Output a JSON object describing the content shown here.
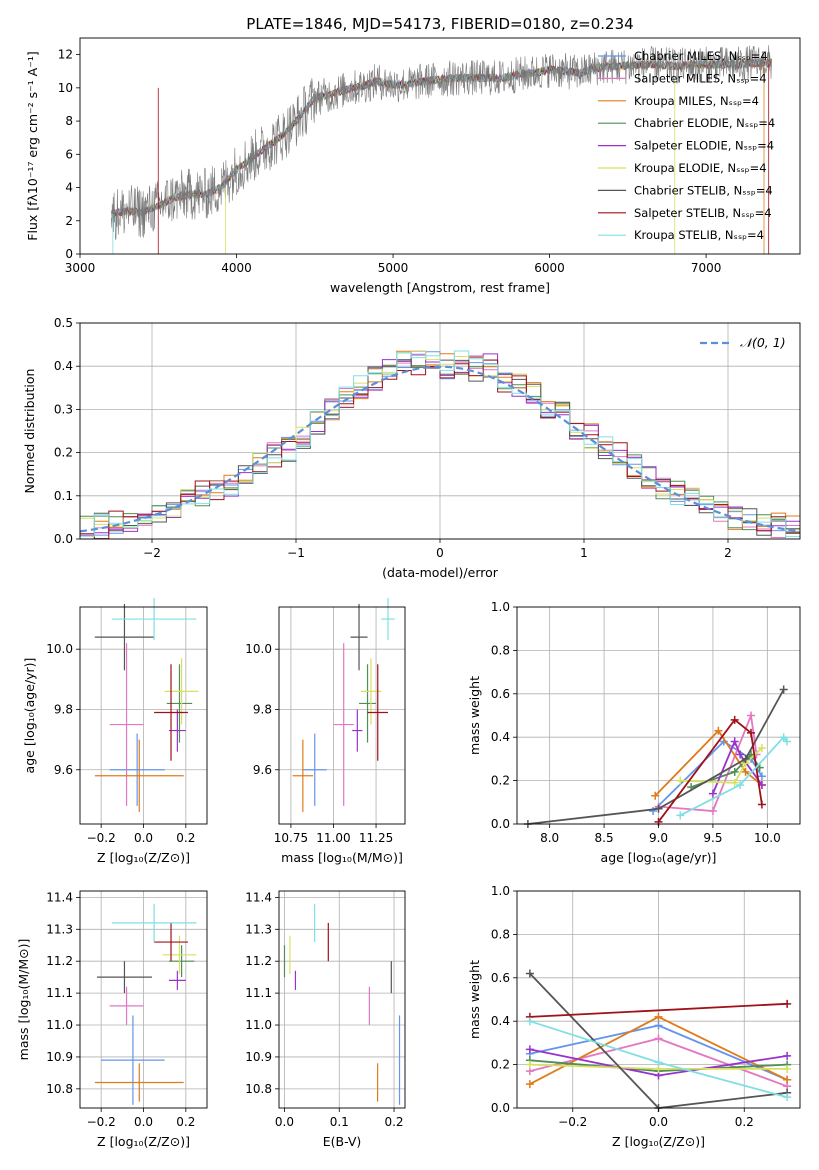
{
  "figure": {
    "title": "PLATE=1846, MJD=54173, FIBERID=0180, z=0.234",
    "colors": [
      "#6495ed",
      "#e377c2",
      "#e07b19",
      "#4e8f56",
      "#9932cc",
      "#d8e060",
      "#555555",
      "#a0111a",
      "#80dfe3"
    ]
  },
  "chart_data": [
    {
      "id": "spectrum",
      "type": "line",
      "xlabel": "wavelength [Angstrom, rest frame]",
      "ylabel": "Flux [fλ10⁻¹⁷ erg cm⁻² s⁻¹ A⁻¹]",
      "xlim": [
        3000,
        7600
      ],
      "ylim": [
        0,
        13
      ],
      "xticks": [
        "3000",
        "4000",
        "5000",
        "6000",
        "7000"
      ],
      "yticks": [
        "0",
        "2",
        "4",
        "6",
        "8",
        "10",
        "12"
      ],
      "legend_position": "top-right",
      "legend": [
        "Chabrier MILES, Nₛₛₚ=4",
        "Salpeter MILES, Nₛₛₚ=4",
        "Kroupa MILES, Nₛₛₚ=4",
        "Chabrier ELODIE, Nₛₛₚ=4",
        "Salpeter ELODIE, Nₛₛₚ=4",
        "Kroupa ELODIE, Nₛₛₚ=4",
        "Chabrier STELIB, Nₛₛₚ=4",
        "Salpeter STELIB, Nₛₛₚ=4",
        "Kroupa STELIB, Nₛₛₚ=4"
      ],
      "envelope_x": [
        3200,
        3300,
        3400,
        3500,
        3600,
        3700,
        3800,
        3900,
        4000,
        4100,
        4200,
        4300,
        4400,
        4500,
        4600,
        4700,
        4800,
        4900,
        5000,
        5100,
        5200,
        5300,
        5400,
        5500,
        5600,
        5700,
        5800,
        5900,
        6000,
        6100,
        6200,
        6300,
        6400,
        6500,
        6600,
        6700,
        6800,
        6900,
        7000,
        7100,
        7200,
        7300,
        7400
      ],
      "envelope_y": [
        2.4,
        2.6,
        2.5,
        2.9,
        3.4,
        3.6,
        3.6,
        4.0,
        5.1,
        5.8,
        6.5,
        7.2,
        8.2,
        9.4,
        9.6,
        9.9,
        10.1,
        10.4,
        10.2,
        10.2,
        10.4,
        10.5,
        10.6,
        10.6,
        10.6,
        10.6,
        10.8,
        10.9,
        11.1,
        11.0,
        10.9,
        11.2,
        11.3,
        11.3,
        11.4,
        11.4,
        11.3,
        11.4,
        11.4,
        11.4,
        11.4,
        11.5,
        11.5
      ]
    },
    {
      "id": "residual-histogram",
      "type": "line",
      "xlabel": "(data-model)/error",
      "ylabel": "Normed distribution",
      "xlim": [
        -2.5,
        2.5
      ],
      "ylim": [
        0,
        0.5
      ],
      "xticks": [
        "−2",
        "−1",
        "0",
        "1",
        "2"
      ],
      "yticks": [
        "0.0",
        "0.1",
        "0.2",
        "0.3",
        "0.4",
        "0.5"
      ],
      "legend": [
        "𝒩(0, 1)"
      ],
      "legend_position": "top-right",
      "bin_centers": [
        -2.45,
        -2.35,
        -2.25,
        -2.15,
        -2.05,
        -1.95,
        -1.85,
        -1.75,
        -1.65,
        -1.55,
        -1.45,
        -1.35,
        -1.25,
        -1.15,
        -1.05,
        -0.95,
        -0.85,
        -0.75,
        -0.65,
        -0.55,
        -0.45,
        -0.35,
        -0.25,
        -0.15,
        -0.05,
        0.05,
        0.15,
        0.25,
        0.35,
        0.45,
        0.55,
        0.65,
        0.75,
        0.85,
        0.95,
        1.05,
        1.15,
        1.25,
        1.35,
        1.45,
        1.55,
        1.65,
        1.75,
        1.85,
        1.95,
        2.05,
        2.15,
        2.25,
        2.35,
        2.45
      ],
      "mean_histogram": [
        0.025,
        0.03,
        0.035,
        0.04,
        0.05,
        0.06,
        0.075,
        0.09,
        0.105,
        0.11,
        0.125,
        0.145,
        0.17,
        0.195,
        0.21,
        0.235,
        0.27,
        0.3,
        0.33,
        0.35,
        0.37,
        0.39,
        0.41,
        0.405,
        0.415,
        0.4,
        0.41,
        0.395,
        0.4,
        0.37,
        0.355,
        0.34,
        0.31,
        0.29,
        0.26,
        0.24,
        0.21,
        0.195,
        0.17,
        0.14,
        0.12,
        0.105,
        0.09,
        0.075,
        0.065,
        0.05,
        0.045,
        0.035,
        0.03,
        0.025
      ]
    },
    {
      "id": "age-vs-Z",
      "type": "scatter",
      "xlabel": "Z [log₁₀(Z/Z⊙)]",
      "ylabel": "age  [log₁₀(age/yr)]",
      "xlim": [
        -0.3,
        0.3
      ],
      "ylim": [
        9.42,
        10.14
      ],
      "xticks": [
        "−0.2",
        "0.0",
        "0.2"
      ],
      "xtick_values": [
        -0.2,
        0.0,
        0.2
      ],
      "yticks": [
        "9.6",
        "9.8",
        "10.0"
      ],
      "ytick_values": [
        9.6,
        9.8,
        10.0
      ],
      "points": [
        {
          "x": -0.03,
          "y": 9.6,
          "xerr": 0.13,
          "yerr": 0.12
        },
        {
          "x": -0.08,
          "y": 9.75,
          "xerr": 0.08,
          "yerr": 0.27
        },
        {
          "x": -0.02,
          "y": 9.58,
          "xerr": 0.21,
          "yerr": 0.12
        },
        {
          "x": 0.17,
          "y": 9.82,
          "xerr": 0.06,
          "yerr": 0.13
        },
        {
          "x": 0.16,
          "y": 9.73,
          "xerr": 0.04,
          "yerr": 0.07
        },
        {
          "x": 0.18,
          "y": 9.86,
          "xerr": 0.08,
          "yerr": 0.11
        },
        {
          "x": -0.09,
          "y": 10.04,
          "xerr": 0.14,
          "yerr": 0.11
        },
        {
          "x": 0.13,
          "y": 9.79,
          "xerr": 0.08,
          "yerr": 0.16
        },
        {
          "x": 0.05,
          "y": 10.1,
          "xerr": 0.2,
          "yerr": 0.07
        }
      ]
    },
    {
      "id": "age-vs-mass",
      "type": "scatter",
      "xlabel": "mass [log₁₀(M/M⊙)]",
      "ylabel": "",
      "xlim": [
        10.68,
        11.42
      ],
      "ylim": [
        9.42,
        10.14
      ],
      "xticks": [
        "10.75",
        "11.00",
        "11.25"
      ],
      "xtick_values": [
        10.75,
        11.0,
        11.25
      ],
      "yticks": [
        "9.6",
        "9.8",
        "10.0"
      ],
      "ytick_values": [
        9.6,
        9.8,
        10.0
      ],
      "points": [
        {
          "x": 10.89,
          "y": 9.6,
          "xerr": 0.07,
          "yerr": 0.12
        },
        {
          "x": 11.06,
          "y": 9.75,
          "xerr": 0.06,
          "yerr": 0.27
        },
        {
          "x": 10.82,
          "y": 9.58,
          "xerr": 0.06,
          "yerr": 0.12
        },
        {
          "x": 11.2,
          "y": 9.82,
          "xerr": 0.05,
          "yerr": 0.13
        },
        {
          "x": 11.14,
          "y": 9.73,
          "xerr": 0.03,
          "yerr": 0.07
        },
        {
          "x": 11.22,
          "y": 9.86,
          "xerr": 0.06,
          "yerr": 0.11
        },
        {
          "x": 11.15,
          "y": 10.04,
          "xerr": 0.05,
          "yerr": 0.11
        },
        {
          "x": 11.26,
          "y": 9.79,
          "xerr": 0.06,
          "yerr": 0.16
        },
        {
          "x": 11.32,
          "y": 10.1,
          "xerr": 0.04,
          "yerr": 0.07
        }
      ]
    },
    {
      "id": "massweight-vs-age",
      "type": "line",
      "xlabel": "age  [log₁₀(age/yr)]",
      "ylabel": "mass weight",
      "xlim": [
        7.7,
        10.3
      ],
      "ylim": [
        0,
        1
      ],
      "xticks": [
        "8.0",
        "8.5",
        "9.0",
        "9.5",
        "10.0"
      ],
      "xtick_values": [
        8.0,
        8.5,
        9.0,
        9.5,
        10.0
      ],
      "yticks": [
        "0.0",
        "0.2",
        "0.4",
        "0.6",
        "0.8",
        "1.0"
      ],
      "ytick_values": [
        0,
        0.2,
        0.4,
        0.6,
        0.8,
        1.0
      ],
      "series": [
        {
          "x": [
            8.95,
            9.6,
            9.85,
            9.95
          ],
          "y": [
            0.06,
            0.38,
            0.3,
            0.22
          ]
        },
        {
          "x": [
            9.0,
            9.5,
            9.85,
            9.9
          ],
          "y": [
            0.08,
            0.06,
            0.5,
            0.32
          ]
        },
        {
          "x": [
            8.97,
            9.55,
            9.8,
            9.95
          ],
          "y": [
            0.13,
            0.43,
            0.24,
            0.18
          ]
        },
        {
          "x": [
            9.3,
            9.7,
            9.85,
            9.93
          ],
          "y": [
            0.17,
            0.24,
            0.32,
            0.26
          ]
        },
        {
          "x": [
            9.5,
            9.7,
            9.75,
            9.95
          ],
          "y": [
            0.14,
            0.38,
            0.32,
            0.18
          ]
        },
        {
          "x": [
            9.2,
            9.7,
            9.8,
            9.95
          ],
          "y": [
            0.2,
            0.19,
            0.28,
            0.35
          ]
        },
        {
          "x": [
            7.8,
            9.0,
            9.8,
            10.15
          ],
          "y": [
            0.0,
            0.07,
            0.3,
            0.62
          ]
        },
        {
          "x": [
            9.0,
            9.7,
            9.85,
            9.95
          ],
          "y": [
            0.01,
            0.48,
            0.42,
            0.09
          ]
        },
        {
          "x": [
            9.2,
            9.75,
            10.15,
            10.18
          ],
          "y": [
            0.04,
            0.18,
            0.4,
            0.38
          ]
        }
      ]
    },
    {
      "id": "mass-vs-Z",
      "type": "scatter",
      "xlabel": "Z [log₁₀(Z/Z⊙)]",
      "ylabel": "mass [log₁₀(M/M⊙)]",
      "xlim": [
        -0.3,
        0.3
      ],
      "ylim": [
        10.74,
        11.42
      ],
      "xticks": [
        "−0.2",
        "0.0",
        "0.2"
      ],
      "xtick_values": [
        -0.2,
        0.0,
        0.2
      ],
      "yticks": [
        "10.8",
        "10.9",
        "11.0",
        "11.1",
        "11.2",
        "11.3",
        "11.4"
      ],
      "ytick_values": [
        10.8,
        10.9,
        11.0,
        11.1,
        11.2,
        11.3,
        11.4
      ],
      "points": [
        {
          "x": -0.05,
          "y": 10.89,
          "xerr": 0.15,
          "yerr": 0.14
        },
        {
          "x": -0.08,
          "y": 11.06,
          "xerr": 0.08,
          "yerr": 0.06
        },
        {
          "x": -0.02,
          "y": 10.82,
          "xerr": 0.21,
          "yerr": 0.06
        },
        {
          "x": 0.18,
          "y": 11.2,
          "xerr": 0.06,
          "yerr": 0.05
        },
        {
          "x": 0.16,
          "y": 11.14,
          "xerr": 0.04,
          "yerr": 0.03
        },
        {
          "x": 0.17,
          "y": 11.22,
          "xerr": 0.08,
          "yerr": 0.06
        },
        {
          "x": -0.09,
          "y": 11.15,
          "xerr": 0.13,
          "yerr": 0.05
        },
        {
          "x": 0.13,
          "y": 11.26,
          "xerr": 0.08,
          "yerr": 0.06
        },
        {
          "x": 0.05,
          "y": 11.32,
          "xerr": 0.2,
          "yerr": 0.06
        }
      ]
    },
    {
      "id": "mass-vs-EBV",
      "type": "scatter",
      "xlabel": "E(B-V)",
      "ylabel": "",
      "xlim": [
        -0.01,
        0.22
      ],
      "ylim": [
        10.74,
        11.42
      ],
      "xticks": [
        "0.0",
        "0.1",
        "0.2"
      ],
      "xtick_values": [
        0.0,
        0.1,
        0.2
      ],
      "yticks": [
        "10.8",
        "10.9",
        "11.0",
        "11.1",
        "11.2",
        "11.3",
        "11.4"
      ],
      "ytick_values": [
        10.8,
        10.9,
        11.0,
        11.1,
        11.2,
        11.3,
        11.4
      ],
      "points": [
        {
          "x": 0.21,
          "y": 10.89,
          "xerr": 0,
          "yerr": 0.14
        },
        {
          "x": 0.155,
          "y": 11.06,
          "xerr": 0,
          "yerr": 0.06
        },
        {
          "x": 0.17,
          "y": 10.82,
          "xerr": 0,
          "yerr": 0.06
        },
        {
          "x": 0.0,
          "y": 11.2,
          "xerr": 0,
          "yerr": 0.05
        },
        {
          "x": 0.02,
          "y": 11.14,
          "xerr": 0,
          "yerr": 0.03
        },
        {
          "x": 0.01,
          "y": 11.22,
          "xerr": 0,
          "yerr": 0.06
        },
        {
          "x": 0.195,
          "y": 11.15,
          "xerr": 0,
          "yerr": 0.05
        },
        {
          "x": 0.08,
          "y": 11.26,
          "xerr": 0,
          "yerr": 0.06
        },
        {
          "x": 0.055,
          "y": 11.32,
          "xerr": 0,
          "yerr": 0.06
        }
      ]
    },
    {
      "id": "massweight-vs-Z",
      "type": "line",
      "xlabel": "Z [log₁₀(Z/Z⊙)]",
      "ylabel": "mass weight",
      "xlim": [
        -0.33,
        0.33
      ],
      "ylim": [
        0,
        1
      ],
      "xticks": [
        "−0.2",
        "0.0",
        "0.2"
      ],
      "xtick_values": [
        -0.2,
        0.0,
        0.2
      ],
      "yticks": [
        "0.0",
        "0.2",
        "0.4",
        "0.6",
        "0.8",
        "1.0"
      ],
      "ytick_values": [
        0,
        0.2,
        0.4,
        0.6,
        0.8,
        1.0
      ],
      "series": [
        {
          "x": [
            -0.3,
            0.0,
            0.3
          ],
          "y": [
            0.25,
            0.38,
            0.13
          ]
        },
        {
          "x": [
            -0.3,
            0.0,
            0.3
          ],
          "y": [
            0.17,
            0.32,
            0.1
          ]
        },
        {
          "x": [
            -0.3,
            0.0,
            0.3
          ],
          "y": [
            0.11,
            0.42,
            0.13
          ]
        },
        {
          "x": [
            -0.3,
            0.0,
            0.3
          ],
          "y": [
            0.22,
            0.17,
            0.2
          ]
        },
        {
          "x": [
            -0.3,
            0.0,
            0.3
          ],
          "y": [
            0.27,
            0.15,
            0.24
          ]
        },
        {
          "x": [
            -0.3,
            0.0,
            0.3
          ],
          "y": [
            0.2,
            0.18,
            0.18
          ]
        },
        {
          "x": [
            -0.3,
            0.0,
            0.3
          ],
          "y": [
            0.62,
            0.0,
            0.07
          ]
        },
        {
          "x": [
            -0.3,
            0.3
          ],
          "y": [
            0.42,
            0.48
          ]
        },
        {
          "x": [
            -0.3,
            0.0,
            0.3
          ],
          "y": [
            0.4,
            0.21,
            0.05
          ]
        }
      ]
    }
  ]
}
